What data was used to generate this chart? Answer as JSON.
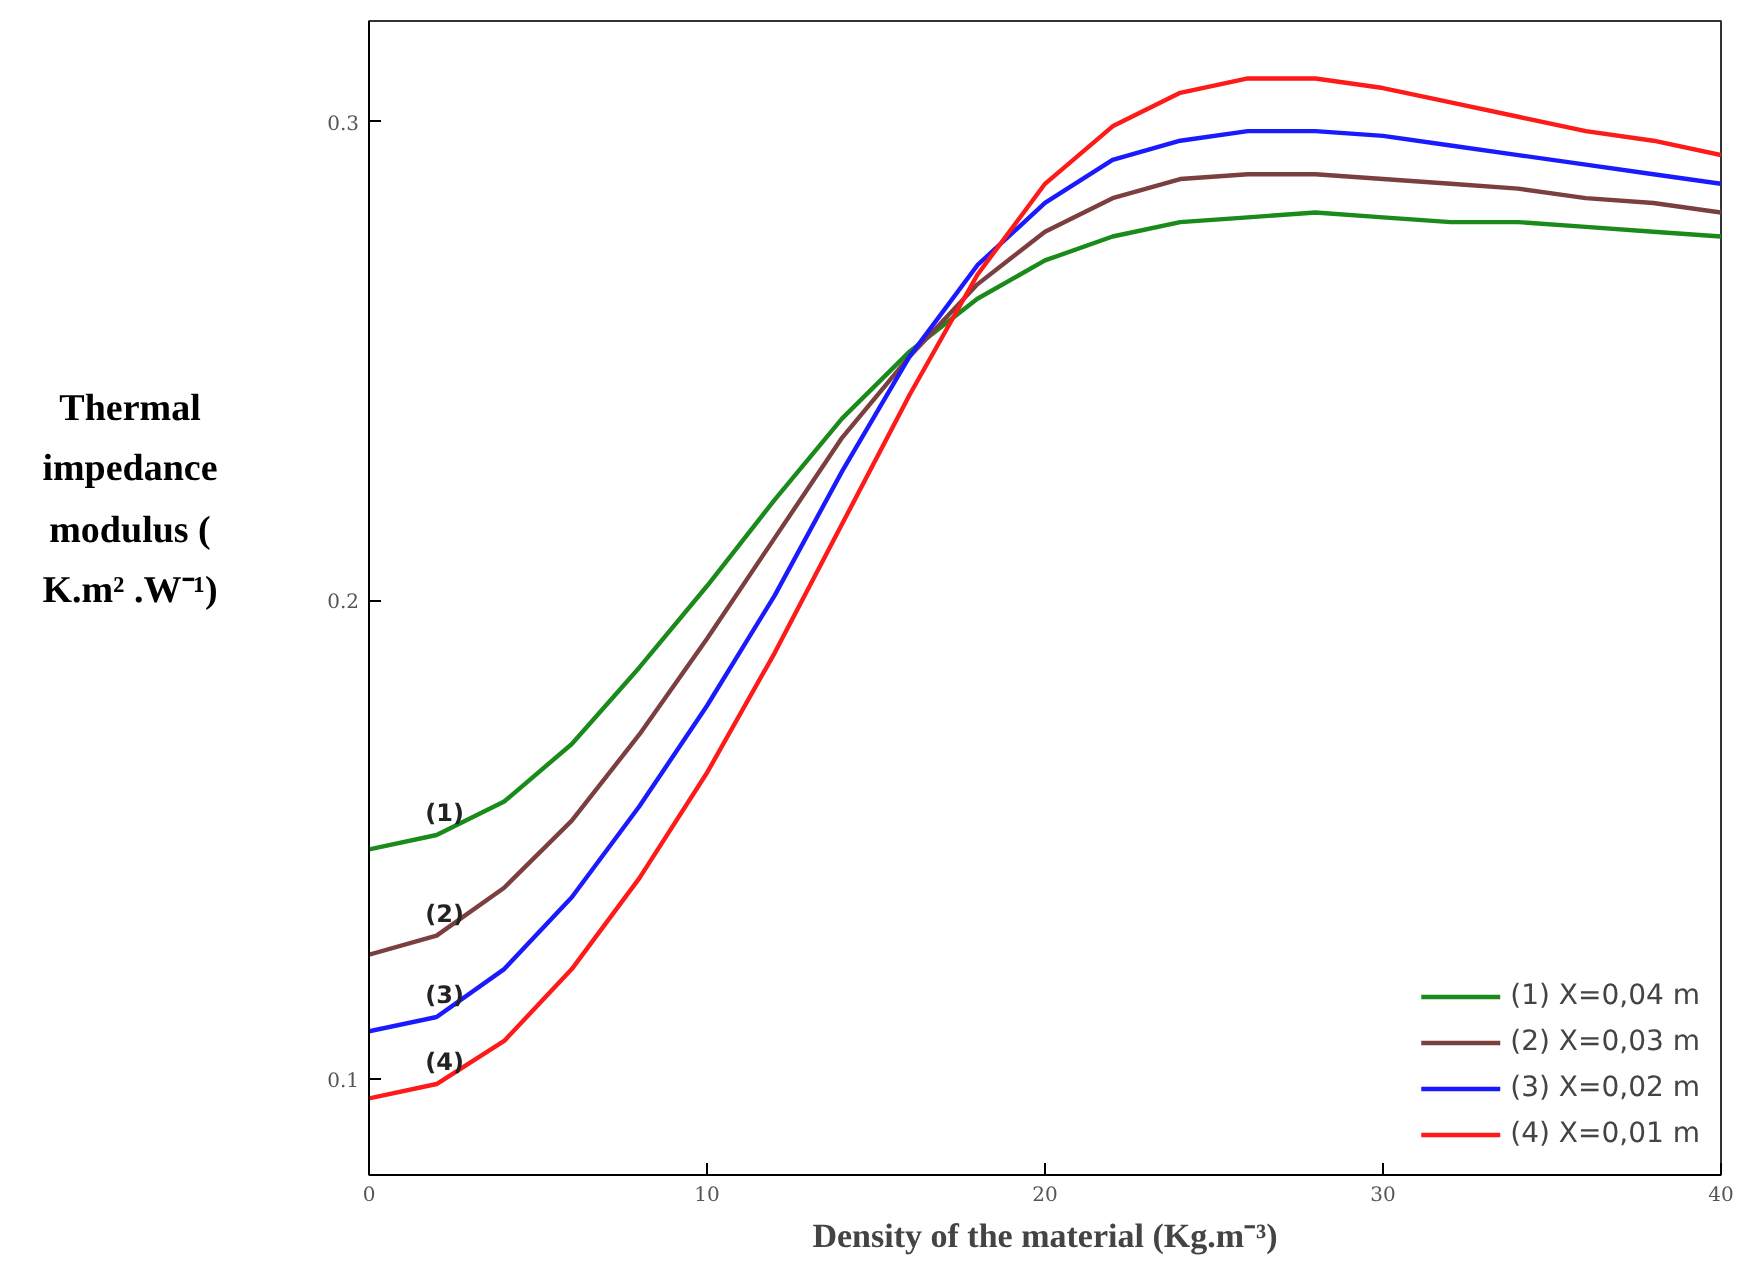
{
  "chart_data": {
    "type": "line",
    "xlabel": "Density of the material (Kg.m⁻³)",
    "ylabel": "Thermal impedance modulus ( K.m² .W⁻¹)",
    "x": [
      0,
      2,
      4,
      6,
      8,
      10,
      12,
      14,
      16,
      18,
      20,
      22,
      24,
      26,
      28,
      30,
      32,
      34,
      36,
      38,
      40
    ],
    "series": [
      {
        "name": "(1) X=0,04 m",
        "color": "#1a8a1a",
        "values": [
          0.148,
          0.151,
          0.158,
          0.17,
          0.186,
          0.203,
          0.221,
          0.238,
          0.252,
          0.263,
          0.271,
          0.276,
          0.279,
          0.28,
          0.281,
          0.28,
          0.279,
          0.279,
          0.278,
          0.277,
          0.276
        ]
      },
      {
        "name": "(2) X=0,03 m",
        "color": "#7b3f3f",
        "values": [
          0.126,
          0.13,
          0.14,
          0.154,
          0.172,
          0.192,
          0.213,
          0.234,
          0.251,
          0.266,
          0.277,
          0.284,
          0.288,
          0.289,
          0.289,
          0.288,
          0.287,
          0.286,
          0.284,
          0.283,
          0.281
        ]
      },
      {
        "name": "(3) X=0,02 m",
        "color": "#1a1aff",
        "values": [
          0.11,
          0.113,
          0.123,
          0.138,
          0.157,
          0.178,
          0.201,
          0.227,
          0.251,
          0.27,
          0.283,
          0.292,
          0.296,
          0.298,
          0.298,
          0.297,
          0.295,
          0.293,
          0.291,
          0.289,
          0.287
        ]
      },
      {
        "name": "(4) X=0,01 m",
        "color": "#ff1a1a",
        "values": [
          0.096,
          0.099,
          0.108,
          0.123,
          0.142,
          0.164,
          0.189,
          0.216,
          0.243,
          0.268,
          0.287,
          0.299,
          0.306,
          0.309,
          0.309,
          0.307,
          0.304,
          0.301,
          0.298,
          0.296,
          0.293
        ]
      }
    ],
    "annotations": [
      "(1)",
      "(2)",
      "(3)",
      "(4)"
    ],
    "xlim": [
      0,
      40
    ],
    "ylim": [
      0.08,
      0.321
    ],
    "xticks": [
      0,
      10,
      20,
      30,
      40
    ],
    "yticks": [
      0.1,
      0.2,
      0.3
    ],
    "grid": false,
    "legend": "bottom right",
    "marker": "none",
    "line_style": "solid"
  }
}
